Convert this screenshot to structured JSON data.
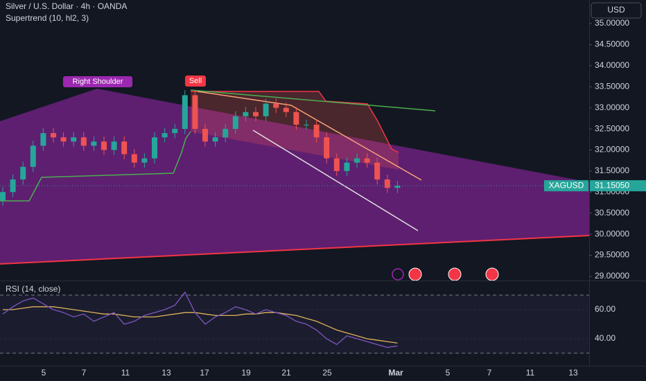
{
  "chart_data": {
    "type": "candlestick",
    "title": "Silver / U.S. Dollar · 4h · OANDA",
    "subtitle": "Supertrend (10, hl2, 3)",
    "currency": "USD",
    "annotations": [
      "Right Shoulder",
      "Sell"
    ],
    "up_color": "#26a69a",
    "down_color": "#ef5350",
    "open": [
      30.8,
      31.0,
      31.3,
      31.6,
      32.1,
      32.4,
      32.3,
      32.2,
      32.3,
      32.1,
      32.2,
      32.0,
      32.2,
      31.9,
      31.7,
      31.8,
      32.3,
      32.4,
      32.5,
      33.3,
      32.5,
      32.2,
      32.3,
      32.5,
      32.8,
      32.9,
      32.8,
      33.1,
      33.0,
      32.9,
      32.6,
      32.6,
      32.3,
      31.8,
      31.5,
      31.7,
      31.8,
      31.7,
      31.3,
      31.1
    ],
    "high": [
      31.12,
      31.42,
      31.72,
      32.22,
      32.52,
      32.52,
      32.42,
      32.42,
      32.42,
      32.32,
      32.32,
      32.32,
      32.32,
      32.02,
      31.92,
      32.42,
      32.52,
      32.62,
      33.42,
      33.42,
      32.62,
      32.42,
      32.62,
      32.92,
      33.02,
      33.02,
      33.22,
      33.22,
      33.12,
      33.02,
      32.72,
      32.72,
      32.42,
      31.92,
      31.82,
      31.92,
      31.92,
      31.82,
      31.42,
      31.27
    ],
    "low": [
      30.68,
      30.88,
      31.18,
      31.48,
      31.98,
      32.18,
      32.08,
      32.08,
      31.98,
      31.98,
      31.88,
      31.88,
      31.78,
      31.58,
      31.58,
      31.68,
      32.18,
      32.28,
      32.38,
      32.38,
      32.08,
      32.08,
      32.18,
      32.38,
      32.68,
      32.68,
      32.68,
      32.88,
      32.78,
      32.48,
      32.48,
      32.18,
      31.68,
      31.38,
      31.38,
      31.58,
      31.58,
      31.18,
      30.98,
      30.98
    ],
    "close": [
      31.0,
      31.3,
      31.6,
      32.1,
      32.4,
      32.3,
      32.2,
      32.3,
      32.1,
      32.2,
      32.0,
      32.2,
      31.9,
      31.7,
      31.8,
      32.3,
      32.4,
      32.5,
      33.3,
      32.5,
      32.2,
      32.3,
      32.5,
      32.8,
      32.9,
      32.8,
      33.1,
      33.0,
      32.9,
      32.6,
      32.6,
      32.3,
      31.8,
      31.5,
      31.7,
      31.8,
      31.7,
      31.3,
      31.1,
      31.15
    ],
    "ylim": [
      28.9,
      35.56
    ],
    "yticks": [
      {
        "value": 35,
        "label": "35.00000"
      },
      {
        "value": 34.5,
        "label": "34.50000"
      },
      {
        "value": 34,
        "label": "34.00000"
      },
      {
        "value": 33.5,
        "label": "33.50000"
      },
      {
        "value": 33,
        "label": "33.00000"
      },
      {
        "value": 32.5,
        "label": "32.50000"
      },
      {
        "value": 32,
        "label": "32.00000"
      },
      {
        "value": 31.5,
        "label": "31.50000"
      },
      {
        "value": 31,
        "label": "31.00000"
      },
      {
        "value": 30.5,
        "label": "30.50000"
      },
      {
        "value": 30,
        "label": "30.00000"
      },
      {
        "value": 29.5,
        "label": "29.50000"
      },
      {
        "value": 29,
        "label": "29.00000"
      }
    ],
    "last_price": {
      "symbol": "XAGUSD",
      "value": 31.1505,
      "label": "31.15050"
    },
    "x_labels": [
      "5",
      "7",
      "11",
      "13",
      "17",
      "19",
      "21",
      "25",
      "Mar",
      "5",
      "7",
      "11",
      "13"
    ],
    "rsi": {
      "title": "RSI (14, close)",
      "color": "#7e57c2",
      "ma_color": "#e0b45a",
      "values": [
        57,
        62,
        66,
        68,
        64,
        60,
        58,
        55,
        57,
        52,
        55,
        58,
        50,
        52,
        56,
        58,
        60,
        63,
        72,
        58,
        50,
        55,
        58,
        62,
        60,
        57,
        60,
        58,
        56,
        52,
        50,
        46,
        40,
        36,
        42,
        40,
        38,
        36,
        34,
        35
      ],
      "ma": [
        60,
        60,
        61,
        62,
        62,
        62,
        61,
        60,
        59,
        58,
        57,
        57,
        56,
        55,
        55,
        55,
        56,
        57,
        58,
        58,
        57,
        56,
        56,
        56,
        57,
        57,
        58,
        58,
        57,
        56,
        54,
        52,
        49,
        46,
        44,
        42,
        40,
        39,
        38,
        37
      ],
      "bands": [
        70,
        30
      ],
      "ylim": [
        25.2,
        78.6
      ],
      "yticks": [
        {
          "value": 60,
          "label": "60.00"
        },
        {
          "value": 40,
          "label": "40.00"
        }
      ]
    }
  }
}
